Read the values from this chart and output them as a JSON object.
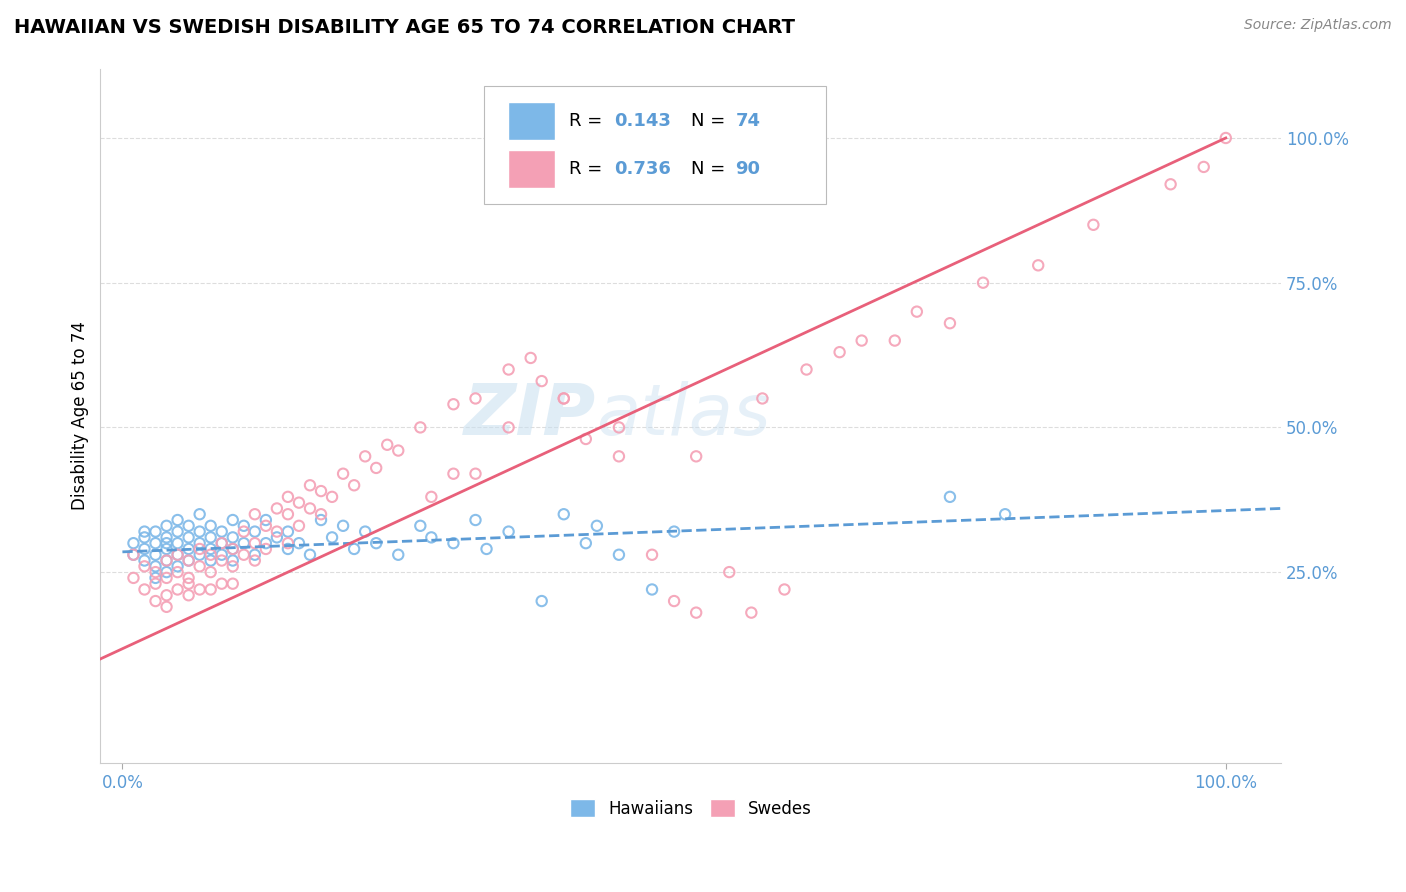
{
  "title": "HAWAIIAN VS SWEDISH DISABILITY AGE 65 TO 74 CORRELATION CHART",
  "source_text": "Source: ZipAtlas.com",
  "ylabel": "Disability Age 65 to 74",
  "y_tick_labels": [
    "25.0%",
    "50.0%",
    "75.0%",
    "100.0%"
  ],
  "y_tick_positions": [
    0.25,
    0.5,
    0.75,
    1.0
  ],
  "xlim": [
    -0.02,
    1.05
  ],
  "ylim": [
    -0.08,
    1.12
  ],
  "color_hawaiian": "#7db8e8",
  "color_swedish": "#f4a0b5",
  "color_hawaiian_line": "#5b9bd5",
  "color_swedish_line": "#e8607a",
  "background_color": "#ffffff",
  "grid_color": "#dddddd",
  "hawaiian_x": [
    0.01,
    0.01,
    0.02,
    0.02,
    0.02,
    0.02,
    0.03,
    0.03,
    0.03,
    0.03,
    0.03,
    0.04,
    0.04,
    0.04,
    0.04,
    0.04,
    0.04,
    0.05,
    0.05,
    0.05,
    0.05,
    0.05,
    0.06,
    0.06,
    0.06,
    0.06,
    0.07,
    0.07,
    0.07,
    0.07,
    0.08,
    0.08,
    0.08,
    0.08,
    0.09,
    0.09,
    0.09,
    0.1,
    0.1,
    0.1,
    0.1,
    0.11,
    0.11,
    0.12,
    0.12,
    0.13,
    0.13,
    0.14,
    0.15,
    0.15,
    0.16,
    0.17,
    0.18,
    0.19,
    0.2,
    0.21,
    0.22,
    0.23,
    0.25,
    0.27,
    0.28,
    0.3,
    0.32,
    0.33,
    0.35,
    0.38,
    0.4,
    0.42,
    0.43,
    0.45,
    0.48,
    0.5,
    0.75,
    0.8
  ],
  "hawaiian_y": [
    0.3,
    0.28,
    0.32,
    0.27,
    0.31,
    0.29,
    0.3,
    0.28,
    0.26,
    0.32,
    0.24,
    0.29,
    0.31,
    0.27,
    0.33,
    0.25,
    0.3,
    0.32,
    0.28,
    0.3,
    0.26,
    0.34,
    0.31,
    0.29,
    0.27,
    0.33,
    0.3,
    0.32,
    0.28,
    0.35,
    0.29,
    0.31,
    0.27,
    0.33,
    0.3,
    0.28,
    0.32,
    0.34,
    0.29,
    0.31,
    0.27,
    0.33,
    0.3,
    0.32,
    0.28,
    0.3,
    0.34,
    0.31,
    0.29,
    0.32,
    0.3,
    0.28,
    0.34,
    0.31,
    0.33,
    0.29,
    0.32,
    0.3,
    0.28,
    0.33,
    0.31,
    0.3,
    0.34,
    0.29,
    0.32,
    0.2,
    0.35,
    0.3,
    0.33,
    0.28,
    0.22,
    0.32,
    0.38,
    0.35
  ],
  "swedish_x": [
    0.01,
    0.01,
    0.02,
    0.02,
    0.03,
    0.03,
    0.03,
    0.04,
    0.04,
    0.04,
    0.04,
    0.05,
    0.05,
    0.05,
    0.06,
    0.06,
    0.06,
    0.06,
    0.07,
    0.07,
    0.07,
    0.08,
    0.08,
    0.08,
    0.09,
    0.09,
    0.09,
    0.1,
    0.1,
    0.1,
    0.11,
    0.11,
    0.12,
    0.12,
    0.12,
    0.13,
    0.13,
    0.14,
    0.14,
    0.15,
    0.15,
    0.15,
    0.16,
    0.16,
    0.17,
    0.17,
    0.18,
    0.18,
    0.19,
    0.2,
    0.21,
    0.22,
    0.23,
    0.24,
    0.25,
    0.27,
    0.3,
    0.32,
    0.35,
    0.37,
    0.4,
    0.42,
    0.45,
    0.48,
    0.5,
    0.52,
    0.55,
    0.57,
    0.6,
    0.65,
    0.7,
    0.75,
    0.35,
    0.4,
    0.32,
    0.28,
    0.3,
    0.38,
    0.45,
    0.52,
    0.58,
    0.62,
    0.67,
    0.72,
    0.78,
    0.83,
    0.88,
    0.95,
    0.98,
    1.0
  ],
  "swedish_y": [
    0.28,
    0.24,
    0.22,
    0.26,
    0.23,
    0.2,
    0.25,
    0.21,
    0.24,
    0.19,
    0.27,
    0.25,
    0.22,
    0.28,
    0.24,
    0.21,
    0.27,
    0.23,
    0.26,
    0.22,
    0.29,
    0.25,
    0.28,
    0.22,
    0.27,
    0.23,
    0.3,
    0.26,
    0.29,
    0.23,
    0.28,
    0.32,
    0.27,
    0.3,
    0.35,
    0.29,
    0.33,
    0.32,
    0.36,
    0.3,
    0.35,
    0.38,
    0.33,
    0.37,
    0.36,
    0.4,
    0.35,
    0.39,
    0.38,
    0.42,
    0.4,
    0.45,
    0.43,
    0.47,
    0.46,
    0.5,
    0.54,
    0.55,
    0.6,
    0.62,
    0.55,
    0.48,
    0.45,
    0.28,
    0.2,
    0.18,
    0.25,
    0.18,
    0.22,
    0.63,
    0.65,
    0.68,
    0.5,
    0.55,
    0.42,
    0.38,
    0.42,
    0.58,
    0.5,
    0.45,
    0.55,
    0.6,
    0.65,
    0.7,
    0.75,
    0.78,
    0.85,
    0.92,
    0.95,
    1.0
  ],
  "hawaiian_line_x0": 0.0,
  "hawaiian_line_x1": 1.05,
  "hawaiian_line_y0": 0.285,
  "hawaiian_line_y1": 0.36,
  "swedish_line_x0": -0.02,
  "swedish_line_x1": 1.0,
  "swedish_line_y0": 0.1,
  "swedish_line_y1": 1.0
}
